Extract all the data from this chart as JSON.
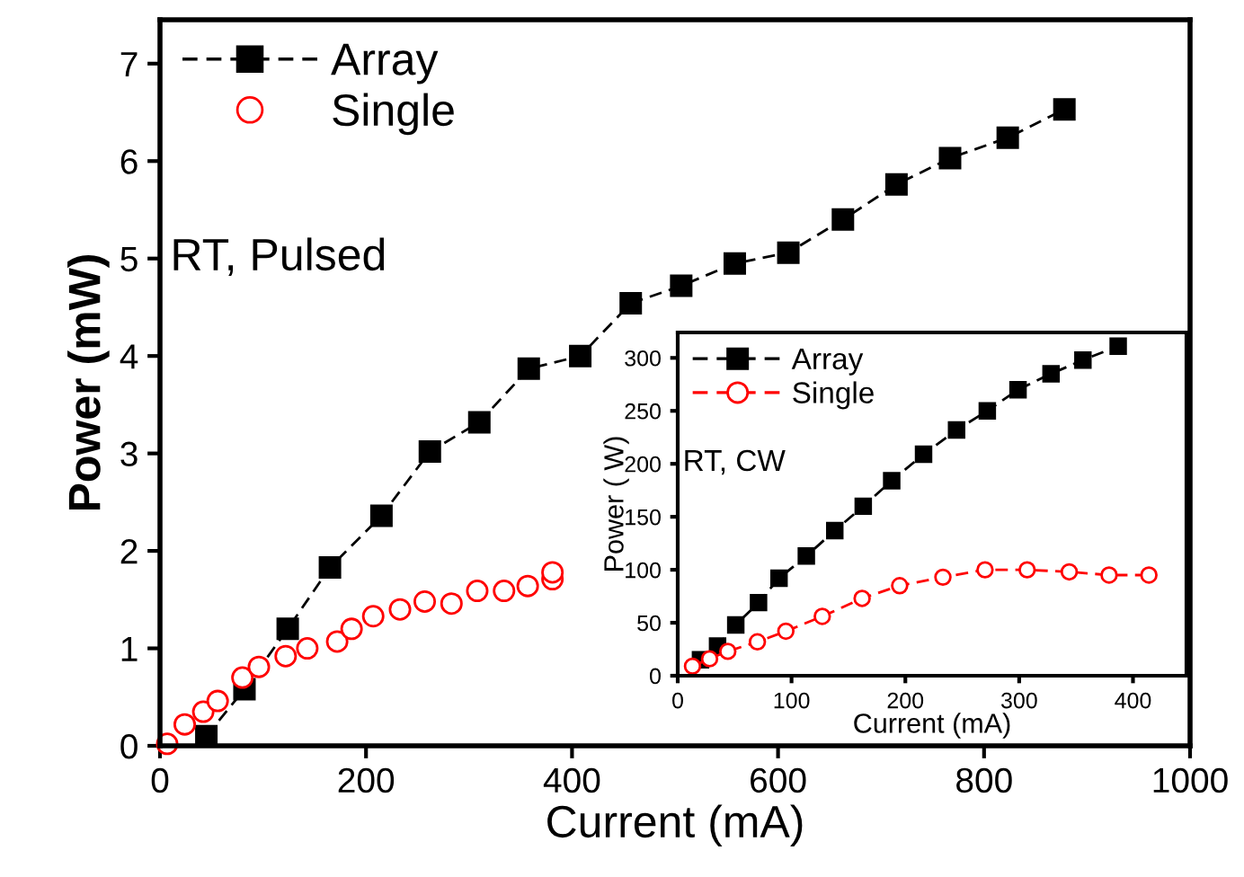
{
  "chart_data": [
    {
      "type": "line",
      "xlabel": "Current (mA)",
      "ylabel": "Power (mW)",
      "xlim": [
        0,
        1000
      ],
      "ylim": [
        0,
        7.45
      ],
      "xticks": [
        0,
        200,
        400,
        600,
        800,
        1000
      ],
      "yticks": [
        0,
        1,
        2,
        3,
        4,
        5,
        6,
        7
      ],
      "grid": false,
      "legend": "top left",
      "annotations": [
        "RT, Pulsed"
      ],
      "series": [
        {
          "name": "Array",
          "color": "#000000",
          "marker": "square",
          "line_style": "dashed",
          "x": [
            45,
            82,
            124,
            165,
            215,
            262,
            310,
            358,
            408,
            457,
            506,
            558,
            610,
            663,
            715,
            767,
            823,
            878
          ],
          "values": [
            0.1,
            0.58,
            1.2,
            1.83,
            2.36,
            3.02,
            3.32,
            3.87,
            4.0,
            4.54,
            4.72,
            4.95,
            5.06,
            5.4,
            5.76,
            6.03,
            6.24,
            6.53
          ]
        },
        {
          "name": "Single",
          "type": "scatter",
          "color": "#ff0000",
          "marker": "circle",
          "x": [
            7,
            24,
            42,
            56,
            80,
            96,
            122,
            143,
            172,
            186,
            207,
            233,
            257,
            283,
            308,
            334,
            357,
            381,
            381
          ],
          "values": [
            0.02,
            0.22,
            0.35,
            0.46,
            0.7,
            0.81,
            0.92,
            1.0,
            1.07,
            1.2,
            1.33,
            1.4,
            1.48,
            1.46,
            1.59,
            1.59,
            1.64,
            1.71,
            1.78
          ]
        }
      ]
    },
    {
      "type": "line",
      "xlabel": "Current (mA)",
      "ylabel": "Power ( W)",
      "xlim": [
        0,
        447
      ],
      "ylim": [
        0,
        324
      ],
      "xticks": [
        0,
        100,
        200,
        300,
        400
      ],
      "yticks": [
        0,
        50,
        100,
        150,
        200,
        250,
        300
      ],
      "grid": false,
      "legend": "top left",
      "annotations": [
        "RT, CW"
      ],
      "series": [
        {
          "name": "Array",
          "color": "#000000",
          "marker": "square",
          "line_style": "dashed",
          "x": [
            20,
            35,
            51,
            71,
            89,
            113,
            138,
            163,
            188,
            216,
            245,
            272,
            299,
            328,
            356,
            387
          ],
          "values": [
            15,
            28,
            48,
            69,
            92,
            113,
            137,
            160,
            184,
            209,
            232,
            250,
            270,
            285,
            298,
            311
          ]
        },
        {
          "name": "Single",
          "color": "#ff0000",
          "marker": "circle",
          "line_style": "dashed",
          "x": [
            13,
            28,
            44,
            70,
            95,
            127,
            162,
            195,
            233,
            270,
            307,
            344,
            379,
            414
          ],
          "values": [
            9,
            16,
            23,
            32,
            42,
            56,
            73,
            85,
            93,
            100,
            100,
            98,
            95,
            95
          ]
        }
      ]
    }
  ]
}
